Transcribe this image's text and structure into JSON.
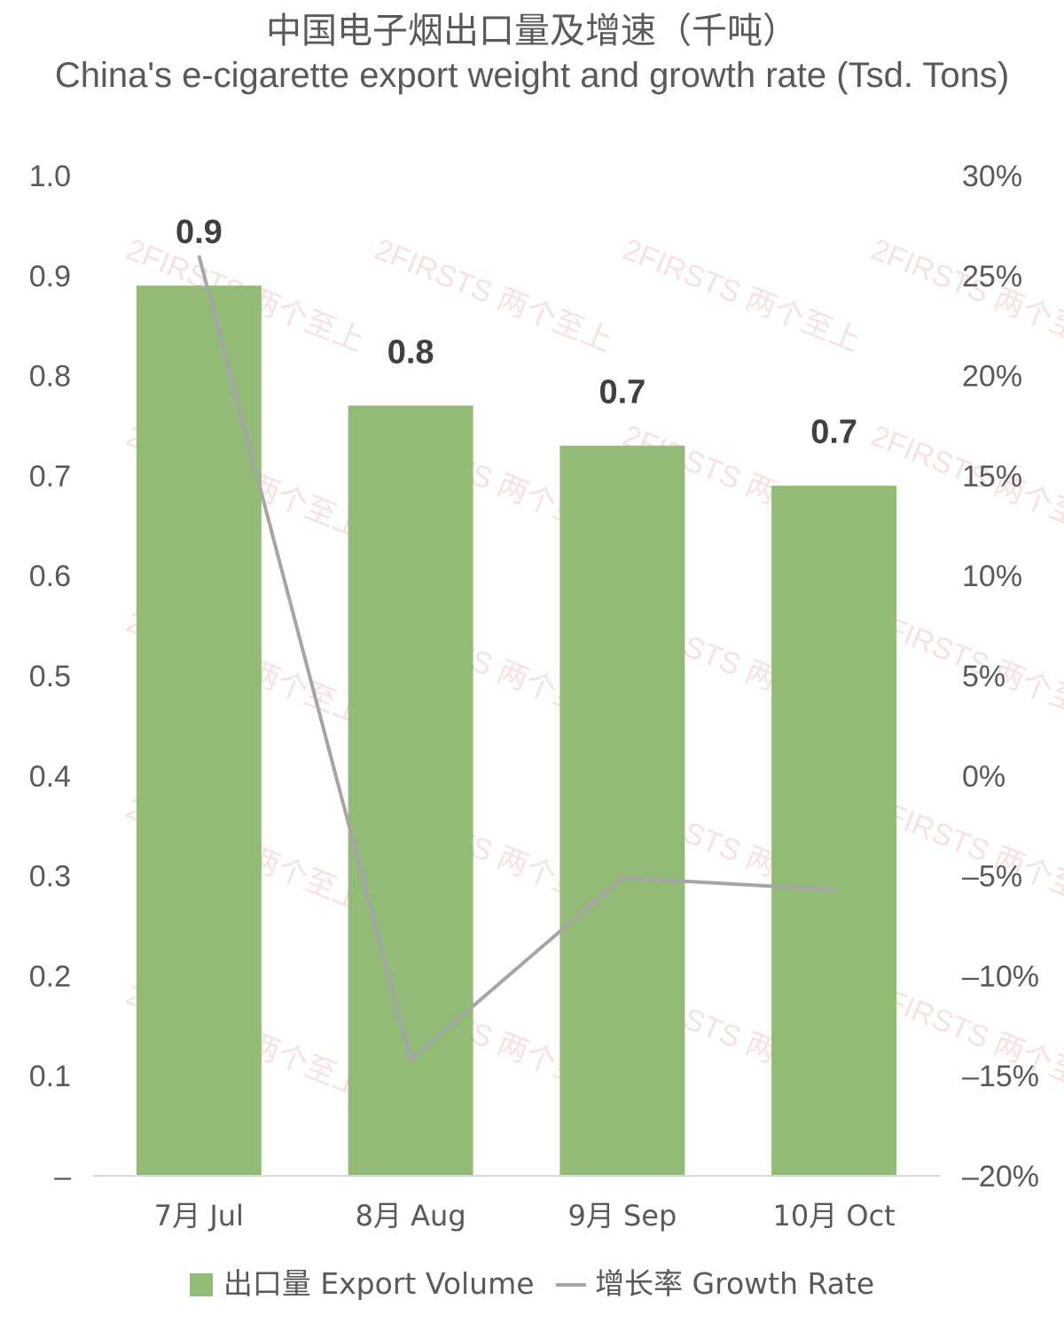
{
  "title": "中国电子烟出口量及增速（千吨）",
  "subtitle": "China's e-cigarette export weight and growth rate (Tsd. Tons)",
  "watermark": "2FIRSTS 两个至上",
  "colors": {
    "bar": "#93ba77",
    "line": "#a5a5a5",
    "text": "#595959"
  },
  "chart_data": {
    "type": "bar",
    "categories": [
      "7月 Jul",
      "8月 Aug",
      "9月 Sep",
      "10月 Oct"
    ],
    "series": [
      {
        "name": "出口量 Export Volume",
        "type": "bar",
        "axis": "left",
        "values": [
          0.89,
          0.77,
          0.73,
          0.69
        ],
        "data_labels": [
          "0.9",
          "0.8",
          "0.7",
          "0.7"
        ]
      },
      {
        "name": "增长率 Growth Rate",
        "type": "line",
        "axis": "right",
        "values": [
          0.26,
          -0.142,
          -0.051,
          -0.057
        ]
      }
    ],
    "y_left": {
      "ylim": [
        0,
        1.0
      ],
      "ticks": [
        "–",
        "0.1",
        "0.2",
        "0.3",
        "0.4",
        "0.5",
        "0.6",
        "0.7",
        "0.8",
        "0.9",
        "1.0"
      ]
    },
    "y_right": {
      "ylim": [
        -0.2,
        0.3
      ],
      "ticks": [
        "–20%",
        "–15%",
        "–10%",
        "–5%",
        "0%",
        "5%",
        "10%",
        "15%",
        "20%",
        "25%",
        "30%"
      ]
    },
    "legend": {
      "position": "bottom"
    },
    "grid": false
  }
}
